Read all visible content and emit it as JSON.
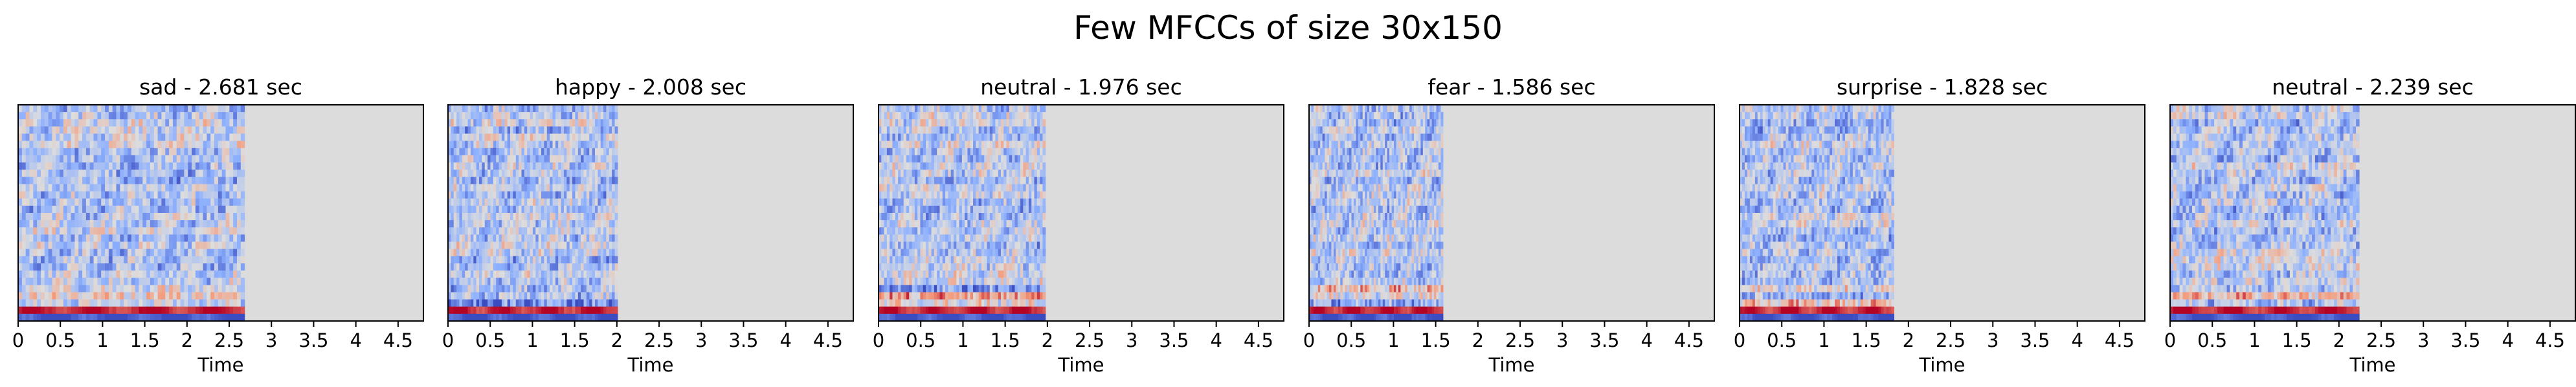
{
  "suptitle": "Few MFCCs of size 30x150",
  "chart_data": [
    {
      "type": "heatmap",
      "title": "sad - 2.681 sec",
      "duration": 2.681,
      "xlabel": "Time",
      "xlim": [
        0,
        4.8
      ],
      "mfcc_rows": 30,
      "frames": 150,
      "xticks": [
        "0",
        "0.5",
        "1",
        "1.5",
        "2",
        "2.5",
        "3",
        "3.5",
        "4",
        "4.5"
      ],
      "colormap": "coolwarm",
      "background_color": "#dcdcdc"
    },
    {
      "type": "heatmap",
      "title": "happy - 2.008 sec",
      "duration": 2.008,
      "xlabel": "Time",
      "xlim": [
        0,
        4.8
      ],
      "mfcc_rows": 30,
      "frames": 150,
      "xticks": [
        "0",
        "0.5",
        "1",
        "1.5",
        "2",
        "2.5",
        "3",
        "3.5",
        "4",
        "4.5"
      ],
      "colormap": "coolwarm",
      "background_color": "#dcdcdc"
    },
    {
      "type": "heatmap",
      "title": "neutral - 1.976 sec",
      "duration": 1.976,
      "xlabel": "Time",
      "xlim": [
        0,
        4.8
      ],
      "mfcc_rows": 30,
      "frames": 150,
      "xticks": [
        "0",
        "0.5",
        "1",
        "1.5",
        "2",
        "2.5",
        "3",
        "3.5",
        "4",
        "4.5"
      ],
      "colormap": "coolwarm",
      "background_color": "#dcdcdc"
    },
    {
      "type": "heatmap",
      "title": "fear - 1.586 sec",
      "duration": 1.586,
      "xlabel": "Time",
      "xlim": [
        0,
        4.8
      ],
      "mfcc_rows": 30,
      "frames": 150,
      "xticks": [
        "0",
        "0.5",
        "1",
        "1.5",
        "2",
        "2.5",
        "3",
        "3.5",
        "4",
        "4.5"
      ],
      "colormap": "coolwarm",
      "background_color": "#dcdcdc"
    },
    {
      "type": "heatmap",
      "title": "surprise - 1.828 sec",
      "duration": 1.828,
      "xlabel": "Time",
      "xlim": [
        0,
        4.8
      ],
      "mfcc_rows": 30,
      "frames": 150,
      "xticks": [
        "0",
        "0.5",
        "1",
        "1.5",
        "2",
        "2.5",
        "3",
        "3.5",
        "4",
        "4.5"
      ],
      "colormap": "coolwarm",
      "background_color": "#dcdcdc"
    },
    {
      "type": "heatmap",
      "title": "neutral - 2.239 sec",
      "duration": 2.239,
      "xlabel": "Time",
      "xlim": [
        0,
        4.8
      ],
      "mfcc_rows": 30,
      "frames": 150,
      "xticks": [
        "0",
        "0.5",
        "1",
        "1.5",
        "2",
        "2.5",
        "3",
        "3.5",
        "4",
        "4.5"
      ],
      "colormap": "coolwarm",
      "background_color": "#dcdcdc"
    }
  ]
}
